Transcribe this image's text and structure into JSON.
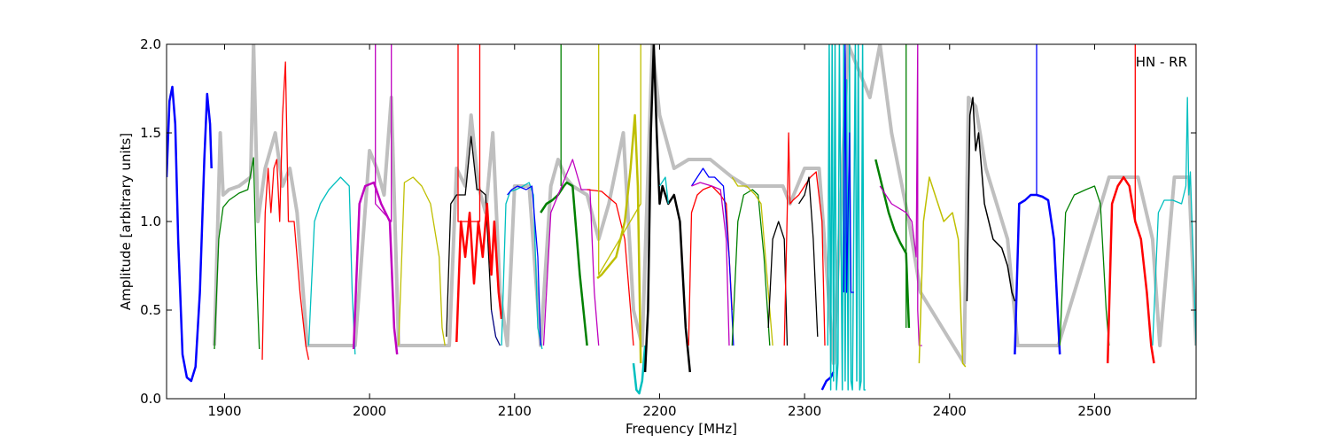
{
  "chart_data": {
    "type": "line",
    "title": "",
    "annotation": "HN - RR",
    "xlabel": "Frequency [MHz]",
    "ylabel": "Amplitude [arbitrary units]",
    "xlim": [
      1860,
      2570
    ],
    "ylim": [
      0.0,
      2.0
    ],
    "xticks": [
      1900,
      2000,
      2100,
      2200,
      2300,
      2400,
      2500
    ],
    "xtick_labels": [
      "1900",
      "2000",
      "2100",
      "2200",
      "2300",
      "2400",
      "2500"
    ],
    "yticks": [
      0.0,
      0.5,
      1.0,
      1.5,
      2.0
    ],
    "ytick_labels": [
      "0.0",
      "0.5",
      "1.0",
      "1.5",
      "2.0"
    ],
    "grid": false,
    "background_series": {
      "color": "#bfbfbf",
      "x": [
        1893,
        1897,
        1899,
        1903,
        1910,
        1918,
        1920,
        1923,
        1928,
        1935,
        1940,
        1945,
        1950,
        1957,
        1990,
        2000,
        2005,
        2010,
        2015,
        2020,
        2055,
        2060,
        2066,
        2070,
        2075,
        2080,
        2085,
        2090,
        2095,
        2100,
        2110,
        2118,
        2125,
        2130,
        2135,
        2140,
        2150,
        2158,
        2165,
        2175,
        2182,
        2188,
        2195,
        2200,
        2210,
        2220,
        2235,
        2250,
        2260,
        2275,
        2285,
        2290,
        2300,
        2310,
        2320,
        2330,
        2345,
        2352,
        2360,
        2372,
        2380,
        2410,
        2413,
        2418,
        2425,
        2440,
        2447,
        2475,
        2510,
        2530,
        2540,
        2545,
        2555,
        2565,
        2570
      ],
      "y": [
        0.3,
        1.5,
        1.15,
        1.18,
        1.2,
        1.25,
        2.0,
        1.0,
        1.3,
        1.5,
        1.2,
        1.3,
        1.05,
        0.3,
        0.3,
        1.4,
        1.3,
        1.15,
        1.7,
        0.3,
        0.3,
        1.3,
        1.2,
        1.6,
        1.2,
        1.05,
        1.5,
        0.6,
        0.3,
        1.2,
        1.2,
        0.3,
        1.2,
        1.35,
        1.25,
        1.2,
        1.15,
        0.9,
        1.1,
        1.5,
        0.5,
        0.3,
        2.0,
        1.6,
        1.3,
        1.35,
        1.35,
        1.25,
        1.2,
        1.2,
        1.2,
        1.1,
        1.3,
        1.3,
        0.2,
        2.0,
        1.7,
        2.0,
        1.5,
        1.0,
        0.6,
        0.2,
        1.7,
        1.65,
        1.3,
        0.9,
        0.3,
        0.3,
        1.25,
        1.25,
        0.9,
        0.3,
        1.25,
        1.25,
        0.3
      ]
    },
    "series": [
      {
        "color": "#0000ff",
        "width": 2.5,
        "x": [
          1860,
          1862,
          1864,
          1866,
          1868,
          1871,
          1874,
          1877,
          1880,
          1883,
          1886,
          1888,
          1890,
          1891
        ],
        "y": [
          1.25,
          1.68,
          1.76,
          1.55,
          0.9,
          0.25,
          0.12,
          0.1,
          0.18,
          0.6,
          1.35,
          1.72,
          1.55,
          1.3
        ]
      },
      {
        "color": "#008000",
        "width": 1.3,
        "x": [
          1893,
          1896,
          1899,
          1903,
          1910,
          1916,
          1920,
          1922,
          1924
        ],
        "y": [
          0.28,
          0.9,
          1.08,
          1.12,
          1.16,
          1.18,
          1.36,
          0.7,
          0.28
        ]
      },
      {
        "color": "#ff0000",
        "width": 1.3,
        "x": [
          1926,
          1928,
          1930,
          1932,
          1934,
          1936,
          1938,
          1940,
          1942,
          1944,
          1948,
          1952,
          1956,
          1958
        ],
        "y": [
          0.22,
          1.05,
          1.3,
          1.05,
          1.3,
          1.35,
          1.0,
          1.6,
          1.9,
          1.0,
          1.0,
          0.6,
          0.3,
          0.22
        ]
      },
      {
        "color": "#00bfbf",
        "width": 1.3,
        "x": [
          1958,
          1962,
          1966,
          1972,
          1980,
          1986,
          1988,
          1990
        ],
        "y": [
          0.3,
          1.0,
          1.1,
          1.18,
          1.25,
          1.2,
          0.6,
          0.25
        ]
      },
      {
        "color": "#bf00bf",
        "width": 2.5,
        "x": [
          1989,
          1993,
          1997,
          2003,
          2008,
          2014,
          2017,
          2019
        ],
        "y": [
          0.28,
          1.1,
          1.2,
          1.22,
          1.1,
          1.0,
          0.4,
          0.25
        ]
      },
      {
        "color": "#bf00bf",
        "width": 1.3,
        "x": [
          2004,
          2004,
          2004,
          2015,
          2015,
          2015
        ],
        "y": [
          1.1,
          2.0,
          1.1,
          1.0,
          2.0,
          1.0
        ]
      },
      {
        "color": "#bfbf00",
        "width": 1.3,
        "x": [
          2020,
          2024,
          2030,
          2036,
          2042,
          2048,
          2050,
          2052
        ],
        "y": [
          0.3,
          1.22,
          1.25,
          1.2,
          1.1,
          0.8,
          0.4,
          0.3
        ]
      },
      {
        "color": "#000000",
        "width": 1.3,
        "x": [
          2053,
          2056,
          2060,
          2066,
          2070,
          2074,
          2076,
          2080,
          2084
        ],
        "y": [
          0.35,
          1.1,
          1.15,
          1.15,
          1.48,
          1.18,
          1.18,
          1.15,
          0.5
        ]
      },
      {
        "color": "#ff0000",
        "width": 2.5,
        "x": [
          2060,
          2063,
          2066,
          2069,
          2072,
          2075,
          2078,
          2081,
          2084,
          2086,
          2089,
          2091
        ],
        "y": [
          0.32,
          1.0,
          0.8,
          1.05,
          0.65,
          1.0,
          0.8,
          1.1,
          0.7,
          1.0,
          0.6,
          0.45
        ]
      },
      {
        "color": "#ff0000",
        "width": 1.3,
        "x": [
          2061,
          2061,
          2061,
          2076,
          2076,
          2076
        ],
        "y": [
          1.0,
          2.0,
          1.0,
          1.0,
          2.0,
          1.0
        ]
      },
      {
        "color": "#000080",
        "width": 1.3,
        "x": [
          2084,
          2087,
          2090
        ],
        "y": [
          0.5,
          0.35,
          0.3
        ]
      },
      {
        "color": "#00bfbf",
        "width": 1.3,
        "x": [
          2091,
          2094,
          2097,
          2101,
          2106,
          2110,
          2113,
          2116,
          2119
        ],
        "y": [
          0.3,
          1.1,
          1.17,
          1.18,
          1.2,
          1.22,
          1.15,
          0.4,
          0.28
        ]
      },
      {
        "color": "#0000ff",
        "width": 1.3,
        "x": [
          2095,
          2098,
          2102,
          2108,
          2112,
          2116,
          2118
        ],
        "y": [
          1.15,
          1.18,
          1.2,
          1.18,
          1.2,
          0.8,
          0.3
        ]
      },
      {
        "color": "#008000",
        "width": 2.5,
        "x": [
          2118,
          2122,
          2126,
          2130,
          2134,
          2136,
          2140,
          2145,
          2150
        ],
        "y": [
          1.05,
          1.1,
          1.12,
          1.15,
          1.2,
          1.22,
          1.2,
          0.7,
          0.3
        ]
      },
      {
        "color": "#008000",
        "width": 1.3,
        "x": [
          2132,
          2132,
          2132
        ],
        "y": [
          1.2,
          2.0,
          1.2
        ]
      },
      {
        "color": "#bf00bf",
        "width": 1.3,
        "x": [
          2120,
          2125,
          2140,
          2146,
          2152,
          2155,
          2158
        ],
        "y": [
          0.3,
          1.05,
          1.35,
          1.18,
          1.18,
          0.6,
          0.3
        ]
      },
      {
        "color": "#ff0000",
        "width": 1.3,
        "x": [
          2150,
          2160,
          2170,
          2176,
          2180,
          2182
        ],
        "y": [
          1.18,
          1.17,
          1.1,
          0.9,
          0.5,
          0.3
        ]
      },
      {
        "color": "#bfbf00",
        "width": 2.5,
        "x": [
          2157,
          2160,
          2165,
          2170,
          2176,
          2180,
          2183,
          2185,
          2187
        ],
        "y": [
          0.68,
          0.7,
          0.75,
          0.8,
          1.0,
          1.3,
          1.6,
          1.2,
          0.2
        ]
      },
      {
        "color": "#bfbf00",
        "width": 1.3,
        "x": [
          2158,
          2158,
          2158,
          2187,
          2187,
          2187
        ],
        "y": [
          0.7,
          2.0,
          0.7,
          1.1,
          2.0,
          1.1
        ]
      },
      {
        "color": "#00bfbf",
        "width": 2.5,
        "x": [
          2182,
          2184,
          2186,
          2188,
          2190
        ],
        "y": [
          0.2,
          0.05,
          0.03,
          0.1,
          0.3
        ]
      },
      {
        "color": "#000000",
        "width": 2.5,
        "x": [
          2190,
          2192,
          2194,
          2196,
          2198,
          2200,
          2202,
          2206,
          2210,
          2214,
          2218,
          2221
        ],
        "y": [
          0.15,
          0.5,
          1.5,
          2.0,
          1.5,
          1.1,
          1.2,
          1.1,
          1.15,
          1.0,
          0.4,
          0.15
        ]
      },
      {
        "color": "#00bfbf",
        "width": 1.3,
        "x": [
          2200,
          2204,
          2206
        ],
        "y": [
          1.2,
          1.25,
          1.1
        ]
      },
      {
        "color": "#ff0000",
        "width": 1.3,
        "x": [
          2220,
          2222,
          2226,
          2230,
          2236,
          2242,
          2246,
          2250
        ],
        "y": [
          0.3,
          1.05,
          1.15,
          1.18,
          1.2,
          1.15,
          1.1,
          0.5
        ]
      },
      {
        "color": "#0000ff",
        "width": 1.3,
        "x": [
          2222,
          2226,
          2230,
          2234,
          2238,
          2244,
          2248,
          2251
        ],
        "y": [
          1.2,
          1.25,
          1.3,
          1.25,
          1.25,
          1.2,
          0.8,
          0.3
        ]
      },
      {
        "color": "#bf00bf",
        "width": 1.3,
        "x": [
          2222,
          2228,
          2236,
          2242,
          2246,
          2248
        ],
        "y": [
          1.2,
          1.22,
          1.2,
          1.18,
          0.9,
          0.3
        ]
      },
      {
        "color": "#008000",
        "width": 1.3,
        "x": [
          2250,
          2254,
          2258,
          2264,
          2268,
          2272,
          2276
        ],
        "y": [
          0.3,
          1.0,
          1.15,
          1.18,
          1.15,
          0.8,
          0.3
        ]
      },
      {
        "color": "#bfbf00",
        "width": 1.3,
        "x": [
          2250,
          2254,
          2260,
          2266,
          2270,
          2274,
          2278
        ],
        "y": [
          1.25,
          1.2,
          1.2,
          1.15,
          1.1,
          0.7,
          0.3
        ]
      },
      {
        "color": "#000000",
        "width": 1.3,
        "x": [
          2275,
          2278,
          2282,
          2286,
          2288
        ],
        "y": [
          0.4,
          0.9,
          1.0,
          0.9,
          0.3
        ]
      },
      {
        "color": "#ff0000",
        "width": 1.3,
        "x": [
          2286,
          2288,
          2289,
          2290,
          2292,
          2296,
          2300,
          2304,
          2308,
          2312,
          2314
        ],
        "y": [
          0.3,
          1.05,
          1.5,
          1.1,
          1.12,
          1.15,
          1.2,
          1.25,
          1.28,
          1.0,
          0.3
        ]
      },
      {
        "color": "#000000",
        "width": 1.3,
        "x": [
          2296,
          2300,
          2303,
          2306,
          2309
        ],
        "y": [
          1.1,
          1.15,
          1.25,
          0.9,
          0.35
        ]
      },
      {
        "color": "#0000ff",
        "width": 2.5,
        "x": [
          2312,
          2315,
          2318,
          2320
        ],
        "y": [
          0.05,
          0.1,
          0.12,
          0.15
        ]
      },
      {
        "color": "#00bfbf",
        "width": 1.5,
        "x": [
          2316,
          2317,
          2318,
          2319,
          2320,
          2321,
          2322,
          2323,
          2324,
          2326,
          2327,
          2328,
          2329,
          2330,
          2331,
          2332,
          2333,
          2335,
          2336,
          2337,
          2338,
          2339,
          2340,
          2341,
          2342
        ],
        "y": [
          0.3,
          2.0,
          0.05,
          2.0,
          0.1,
          2.0,
          0.05,
          0.2,
          2.0,
          0.05,
          2.0,
          0.1,
          1.8,
          0.05,
          2.0,
          0.1,
          0.05,
          2.0,
          0.1,
          2.0,
          0.05,
          0.1,
          2.0,
          0.05,
          0.05
        ]
      },
      {
        "color": "#0000ff",
        "width": 1.3,
        "x": [
          2327,
          2328,
          2329,
          2331,
          2332,
          2334
        ],
        "y": [
          0.6,
          2.0,
          0.6,
          1.5,
          0.6,
          0.6
        ]
      },
      {
        "color": "#008000",
        "width": 2.5,
        "x": [
          2349,
          2352,
          2355,
          2358,
          2362,
          2366,
          2370,
          2372
        ],
        "y": [
          1.35,
          1.25,
          1.15,
          1.05,
          0.95,
          0.88,
          0.82,
          0.4
        ]
      },
      {
        "color": "#008000",
        "width": 1.3,
        "x": [
          2370,
          2370,
          2370
        ],
        "y": [
          1.0,
          2.0,
          0.4
        ]
      },
      {
        "color": "#bf00bf",
        "width": 1.3,
        "x": [
          2352,
          2360,
          2370,
          2374,
          2377,
          2378,
          2378,
          2379,
          2381
        ],
        "y": [
          1.2,
          1.1,
          1.05,
          1.0,
          0.8,
          2.0,
          0.5,
          0.3,
          0.3
        ]
      },
      {
        "color": "#bfbf00",
        "width": 1.5,
        "x": [
          2379,
          2382,
          2386,
          2390,
          2396,
          2402,
          2406,
          2409,
          2411
        ],
        "y": [
          0.2,
          1.0,
          1.25,
          1.15,
          1.0,
          1.05,
          0.9,
          0.2,
          0.18
        ]
      },
      {
        "color": "#000000",
        "width": 1.5,
        "x": [
          2412,
          2414,
          2416,
          2418,
          2420,
          2424,
          2430,
          2436,
          2440,
          2443,
          2445
        ],
        "y": [
          0.55,
          1.6,
          1.7,
          1.4,
          1.5,
          1.1,
          0.9,
          0.85,
          0.75,
          0.6,
          0.55
        ]
      },
      {
        "color": "#0000ff",
        "width": 2.5,
        "x": [
          2445,
          2448,
          2452,
          2456,
          2460,
          2464,
          2468,
          2472,
          2476
        ],
        "y": [
          0.25,
          1.1,
          1.12,
          1.15,
          1.15,
          1.14,
          1.12,
          0.9,
          0.25
        ]
      },
      {
        "color": "#0000ff",
        "width": 1.3,
        "x": [
          2460,
          2460,
          2460
        ],
        "y": [
          1.15,
          2.0,
          1.15
        ]
      },
      {
        "color": "#008000",
        "width": 1.3,
        "x": [
          2476,
          2480,
          2486,
          2494,
          2500,
          2504,
          2508,
          2510
        ],
        "y": [
          0.3,
          1.05,
          1.15,
          1.18,
          1.2,
          1.1,
          0.5,
          0.3
        ]
      },
      {
        "color": "#ff0000",
        "width": 2.5,
        "x": [
          2509,
          2512,
          2516,
          2520,
          2524,
          2528,
          2532,
          2536,
          2539,
          2541
        ],
        "y": [
          0.2,
          1.1,
          1.2,
          1.25,
          1.2,
          1.0,
          0.9,
          0.6,
          0.3,
          0.2
        ]
      },
      {
        "color": "#ff0000",
        "width": 1.3,
        "x": [
          2528,
          2528,
          2528
        ],
        "y": [
          1.0,
          2.0,
          1.0
        ]
      },
      {
        "color": "#00bfbf",
        "width": 1.3,
        "x": [
          2540,
          2544,
          2548,
          2554,
          2560,
          2563,
          2564,
          2565,
          2566,
          2568,
          2570
        ],
        "y": [
          0.3,
          1.05,
          1.12,
          1.12,
          1.1,
          1.2,
          1.7,
          1.15,
          1.28,
          0.8,
          0.3
        ]
      }
    ]
  }
}
